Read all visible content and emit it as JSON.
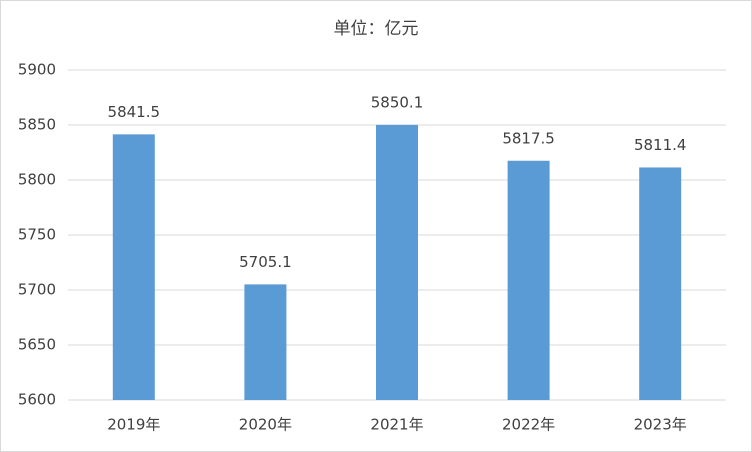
{
  "chart_data": {
    "type": "bar",
    "title": "单位：亿元",
    "categories": [
      "2019年",
      "2020年",
      "2021年",
      "2022年",
      "2023年"
    ],
    "values": [
      5841.5,
      5705.1,
      5850.1,
      5817.5,
      5811.4
    ],
    "color": "#5b9bd5",
    "ylim": [
      5600,
      5900
    ],
    "yticks": [
      5600,
      5650,
      5700,
      5750,
      5800,
      5850,
      5900
    ],
    "grid": true
  }
}
